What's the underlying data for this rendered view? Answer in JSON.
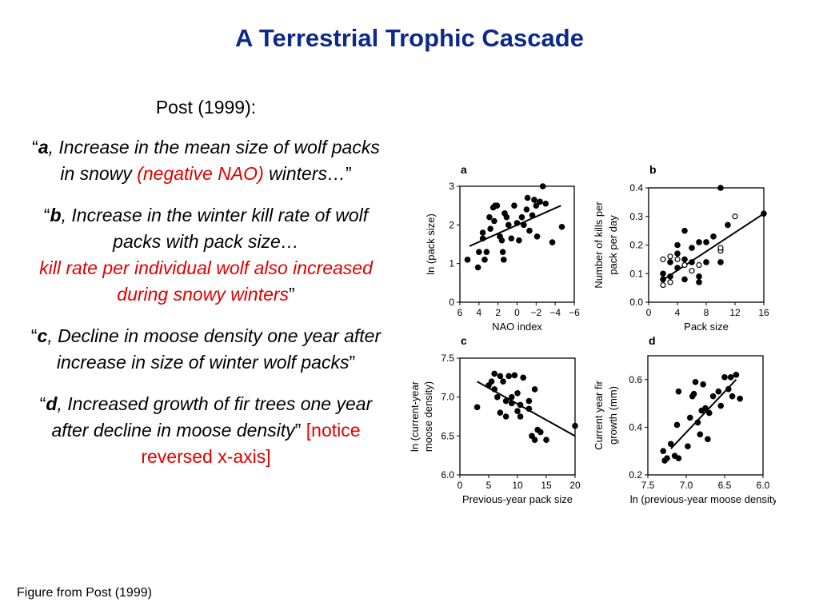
{
  "slide": {
    "title": "A Terrestrial Trophic Cascade",
    "caption": "Figure from Post (1999)",
    "header": "Post (1999):",
    "quote_a": {
      "open": "“",
      "letter": "a",
      "text": ", Increase in the mean size of wolf packs in snowy ",
      "red": "(negative NAO)",
      "tail": " winters…",
      "close": "”"
    },
    "quote_b": {
      "open": "“",
      "letter": "b",
      "text": ", Increase in the winter kill rate of wolf packs with pack size…",
      "red": "kill rate per individual wolf also increased during snowy winters",
      "close": "”"
    },
    "quote_c": {
      "open": "“",
      "letter": "c",
      "text": ", Decline in moose density one year after increase in size of winter wolf packs",
      "close": "”"
    },
    "quote_d": {
      "open": "“",
      "letter": "d",
      "text": ", Increased growth of fir trees one year after decline in moose density",
      "close": "”",
      "red": " [notice reversed x-axis]"
    }
  },
  "chart_data": [
    {
      "panel": "a",
      "type": "scatter",
      "xlabel": "NAO index",
      "ylabel": "ln (pack size)",
      "xlim": [
        6,
        -6
      ],
      "ylim": [
        0,
        3
      ],
      "x_reversed": true,
      "xticks": [
        6,
        4,
        2,
        0,
        -2,
        -4,
        -6
      ],
      "xtick_labels": [
        "6",
        "4",
        "2",
        "0",
        "−2",
        "−4",
        "−6"
      ],
      "yticks": [
        0,
        1,
        2,
        3
      ],
      "ytick_labels": [
        "0",
        "1",
        "2",
        "3"
      ],
      "points": [
        [
          5.2,
          1.1
        ],
        [
          4.1,
          0.9
        ],
        [
          4.0,
          1.3
        ],
        [
          3.6,
          1.8
        ],
        [
          3.4,
          1.1
        ],
        [
          3.6,
          1.65
        ],
        [
          3.2,
          1.3
        ],
        [
          2.9,
          2.2
        ],
        [
          2.8,
          1.9
        ],
        [
          2.5,
          2.45
        ],
        [
          2.3,
          2.5
        ],
        [
          2.1,
          2.5
        ],
        [
          2.4,
          2.1
        ],
        [
          1.8,
          1.7
        ],
        [
          1.6,
          1.6
        ],
        [
          1.4,
          1.1
        ],
        [
          1.5,
          1.3
        ],
        [
          1.3,
          2.3
        ],
        [
          1.1,
          2.2
        ],
        [
          0.9,
          2.0
        ],
        [
          0.6,
          1.65
        ],
        [
          0.3,
          2.5
        ],
        [
          0.0,
          2.05
        ],
        [
          -0.2,
          1.6
        ],
        [
          -0.5,
          2.2
        ],
        [
          -0.7,
          2.0
        ],
        [
          -1.0,
          2.4
        ],
        [
          -1.1,
          2.7
        ],
        [
          -1.3,
          1.85
        ],
        [
          -1.6,
          2.25
        ],
        [
          -1.8,
          2.65
        ],
        [
          -2.0,
          2.5
        ],
        [
          -2.4,
          2.6
        ],
        [
          -2.7,
          3.0
        ],
        [
          -2.1,
          1.7
        ],
        [
          -3.0,
          2.55
        ],
        [
          -3.7,
          1.55
        ],
        [
          -4.7,
          1.95
        ]
      ],
      "fit": [
        [
          5.0,
          1.45
        ],
        [
          -4.6,
          2.5
        ]
      ]
    },
    {
      "panel": "b",
      "type": "scatter",
      "xlabel": "Pack size",
      "ylabel": "Number of kills per pack per day",
      "xlim": [
        0,
        16
      ],
      "ylim": [
        0.0,
        0.4
      ],
      "xticks": [
        0,
        4,
        8,
        12,
        16
      ],
      "xtick_labels": [
        "0",
        "4",
        "8",
        "12",
        "16"
      ],
      "yticks": [
        0.0,
        0.1,
        0.2,
        0.3,
        0.4
      ],
      "ytick_labels": [
        "0.0",
        "0.1",
        "0.2",
        "0.3",
        "0.4"
      ],
      "filled_points": [
        [
          2,
          0.08
        ],
        [
          2,
          0.1
        ],
        [
          3,
          0.14
        ],
        [
          3,
          0.09
        ],
        [
          4,
          0.12
        ],
        [
          4,
          0.17
        ],
        [
          4,
          0.2
        ],
        [
          5,
          0.15
        ],
        [
          5,
          0.25
        ],
        [
          5,
          0.08
        ],
        [
          6,
          0.14
        ],
        [
          6,
          0.19
        ],
        [
          7,
          0.21
        ],
        [
          7,
          0.07
        ],
        [
          7,
          0.09
        ],
        [
          8,
          0.21
        ],
        [
          8,
          0.14
        ],
        [
          9,
          0.23
        ],
        [
          10,
          0.14
        ],
        [
          11,
          0.27
        ],
        [
          10,
          0.4
        ],
        [
          16,
          0.31
        ]
      ],
      "open_points": [
        [
          2,
          0.06
        ],
        [
          2,
          0.15
        ],
        [
          3,
          0.07
        ],
        [
          3,
          0.16
        ],
        [
          4,
          0.15
        ],
        [
          5,
          0.13
        ],
        [
          6,
          0.11
        ],
        [
          7,
          0.13
        ],
        [
          10,
          0.18
        ],
        [
          10,
          0.19
        ],
        [
          12,
          0.3
        ]
      ],
      "fit": [
        [
          1.8,
          0.075
        ],
        [
          16,
          0.31
        ]
      ]
    },
    {
      "panel": "c",
      "type": "scatter",
      "xlabel": "Previous-year pack size",
      "ylabel": "ln (current-year moose density)",
      "xlim": [
        0,
        20
      ],
      "ylim": [
        6.0,
        7.5
      ],
      "xticks": [
        0,
        5,
        10,
        15,
        20
      ],
      "xtick_labels": [
        "0",
        "5",
        "10",
        "15",
        "20"
      ],
      "yticks": [
        6.0,
        6.5,
        7.0,
        7.5
      ],
      "ytick_labels": [
        "6.0",
        "6.5",
        "7.0",
        "7.5"
      ],
      "points": [
        [
          3,
          6.87
        ],
        [
          5,
          7.15
        ],
        [
          5.5,
          7.2
        ],
        [
          6,
          7.3
        ],
        [
          6,
          7.1
        ],
        [
          6.5,
          7.0
        ],
        [
          7,
          7.27
        ],
        [
          7,
          6.8
        ],
        [
          7.5,
          7.2
        ],
        [
          8,
          6.95
        ],
        [
          8,
          6.75
        ],
        [
          8.5,
          7.27
        ],
        [
          9,
          7.0
        ],
        [
          9,
          6.92
        ],
        [
          9.5,
          7.28
        ],
        [
          10,
          7.05
        ],
        [
          10,
          6.82
        ],
        [
          10.5,
          6.9
        ],
        [
          10.5,
          6.75
        ],
        [
          11,
          7.25
        ],
        [
          12,
          6.95
        ],
        [
          12,
          6.85
        ],
        [
          12.5,
          6.5
        ],
        [
          13,
          6.45
        ],
        [
          13,
          7.1
        ],
        [
          13.5,
          6.58
        ],
        [
          14,
          6.55
        ],
        [
          15,
          6.45
        ],
        [
          20,
          6.63
        ]
      ],
      "fit": [
        [
          3,
          7.2
        ],
        [
          20,
          6.5
        ]
      ]
    },
    {
      "panel": "d",
      "type": "scatter",
      "xlabel": "ln (previous-year moose density)",
      "ylabel": "Current year fir growth (mm)",
      "xlim": [
        7.5,
        6.0
      ],
      "ylim": [
        0.2,
        0.7
      ],
      "x_reversed": true,
      "xticks": [
        7.5,
        7.0,
        6.5,
        6.0
      ],
      "xtick_labels": [
        "7.5",
        "7.0",
        "6.5",
        "6.0"
      ],
      "yticks": [
        0.2,
        0.4,
        0.6
      ],
      "ytick_labels": [
        "0.2",
        "0.4",
        "0.6"
      ],
      "points": [
        [
          7.3,
          0.3
        ],
        [
          7.25,
          0.27
        ],
        [
          7.28,
          0.26
        ],
        [
          7.2,
          0.33
        ],
        [
          7.15,
          0.28
        ],
        [
          7.1,
          0.27
        ],
        [
          7.12,
          0.41
        ],
        [
          7.1,
          0.55
        ],
        [
          6.98,
          0.32
        ],
        [
          6.95,
          0.44
        ],
        [
          6.92,
          0.53
        ],
        [
          6.9,
          0.54
        ],
        [
          6.88,
          0.59
        ],
        [
          6.85,
          0.42
        ],
        [
          6.82,
          0.37
        ],
        [
          6.8,
          0.47
        ],
        [
          6.78,
          0.58
        ],
        [
          6.75,
          0.48
        ],
        [
          6.72,
          0.35
        ],
        [
          6.7,
          0.46
        ],
        [
          6.65,
          0.53
        ],
        [
          6.58,
          0.55
        ],
        [
          6.55,
          0.49
        ],
        [
          6.5,
          0.61
        ],
        [
          6.45,
          0.56
        ],
        [
          6.42,
          0.61
        ],
        [
          6.4,
          0.53
        ],
        [
          6.35,
          0.62
        ],
        [
          6.3,
          0.52
        ]
      ],
      "fit": [
        [
          7.2,
          0.31
        ],
        [
          6.35,
          0.6
        ]
      ]
    }
  ]
}
